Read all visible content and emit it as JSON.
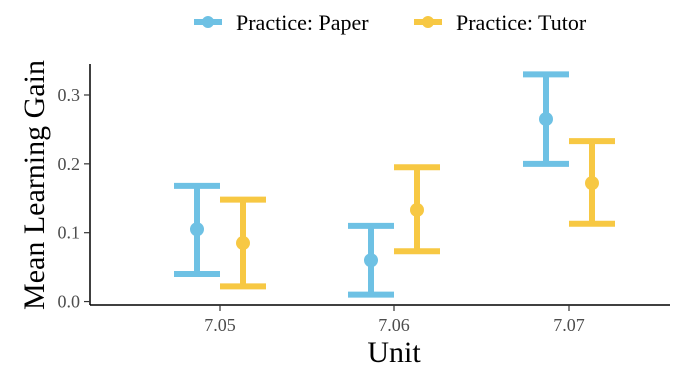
{
  "chart_data": {
    "type": "errorbar",
    "xlabel": "Unit",
    "ylabel": "Mean Learning Gain",
    "categories": [
      "7.05",
      "7.06",
      "7.07"
    ],
    "ylim": [
      -0.005,
      0.345
    ],
    "yticks": [
      0.0,
      0.1,
      0.2,
      0.3
    ],
    "ytick_labels": [
      "0.0",
      "0.1",
      "0.2",
      "0.3"
    ],
    "legend_position": "top",
    "series": [
      {
        "name": "Practice: Paper",
        "color": "#6ec1e4",
        "mean": [
          0.105,
          0.06,
          0.265
        ],
        "lower": [
          0.04,
          0.01,
          0.2
        ],
        "upper": [
          0.168,
          0.11,
          0.33
        ]
      },
      {
        "name": "Practice: Tutor",
        "color": "#f7c843",
        "mean": [
          0.085,
          0.133,
          0.172
        ],
        "lower": [
          0.022,
          0.073,
          0.113
        ],
        "upper": [
          0.148,
          0.195,
          0.233
        ]
      }
    ]
  }
}
